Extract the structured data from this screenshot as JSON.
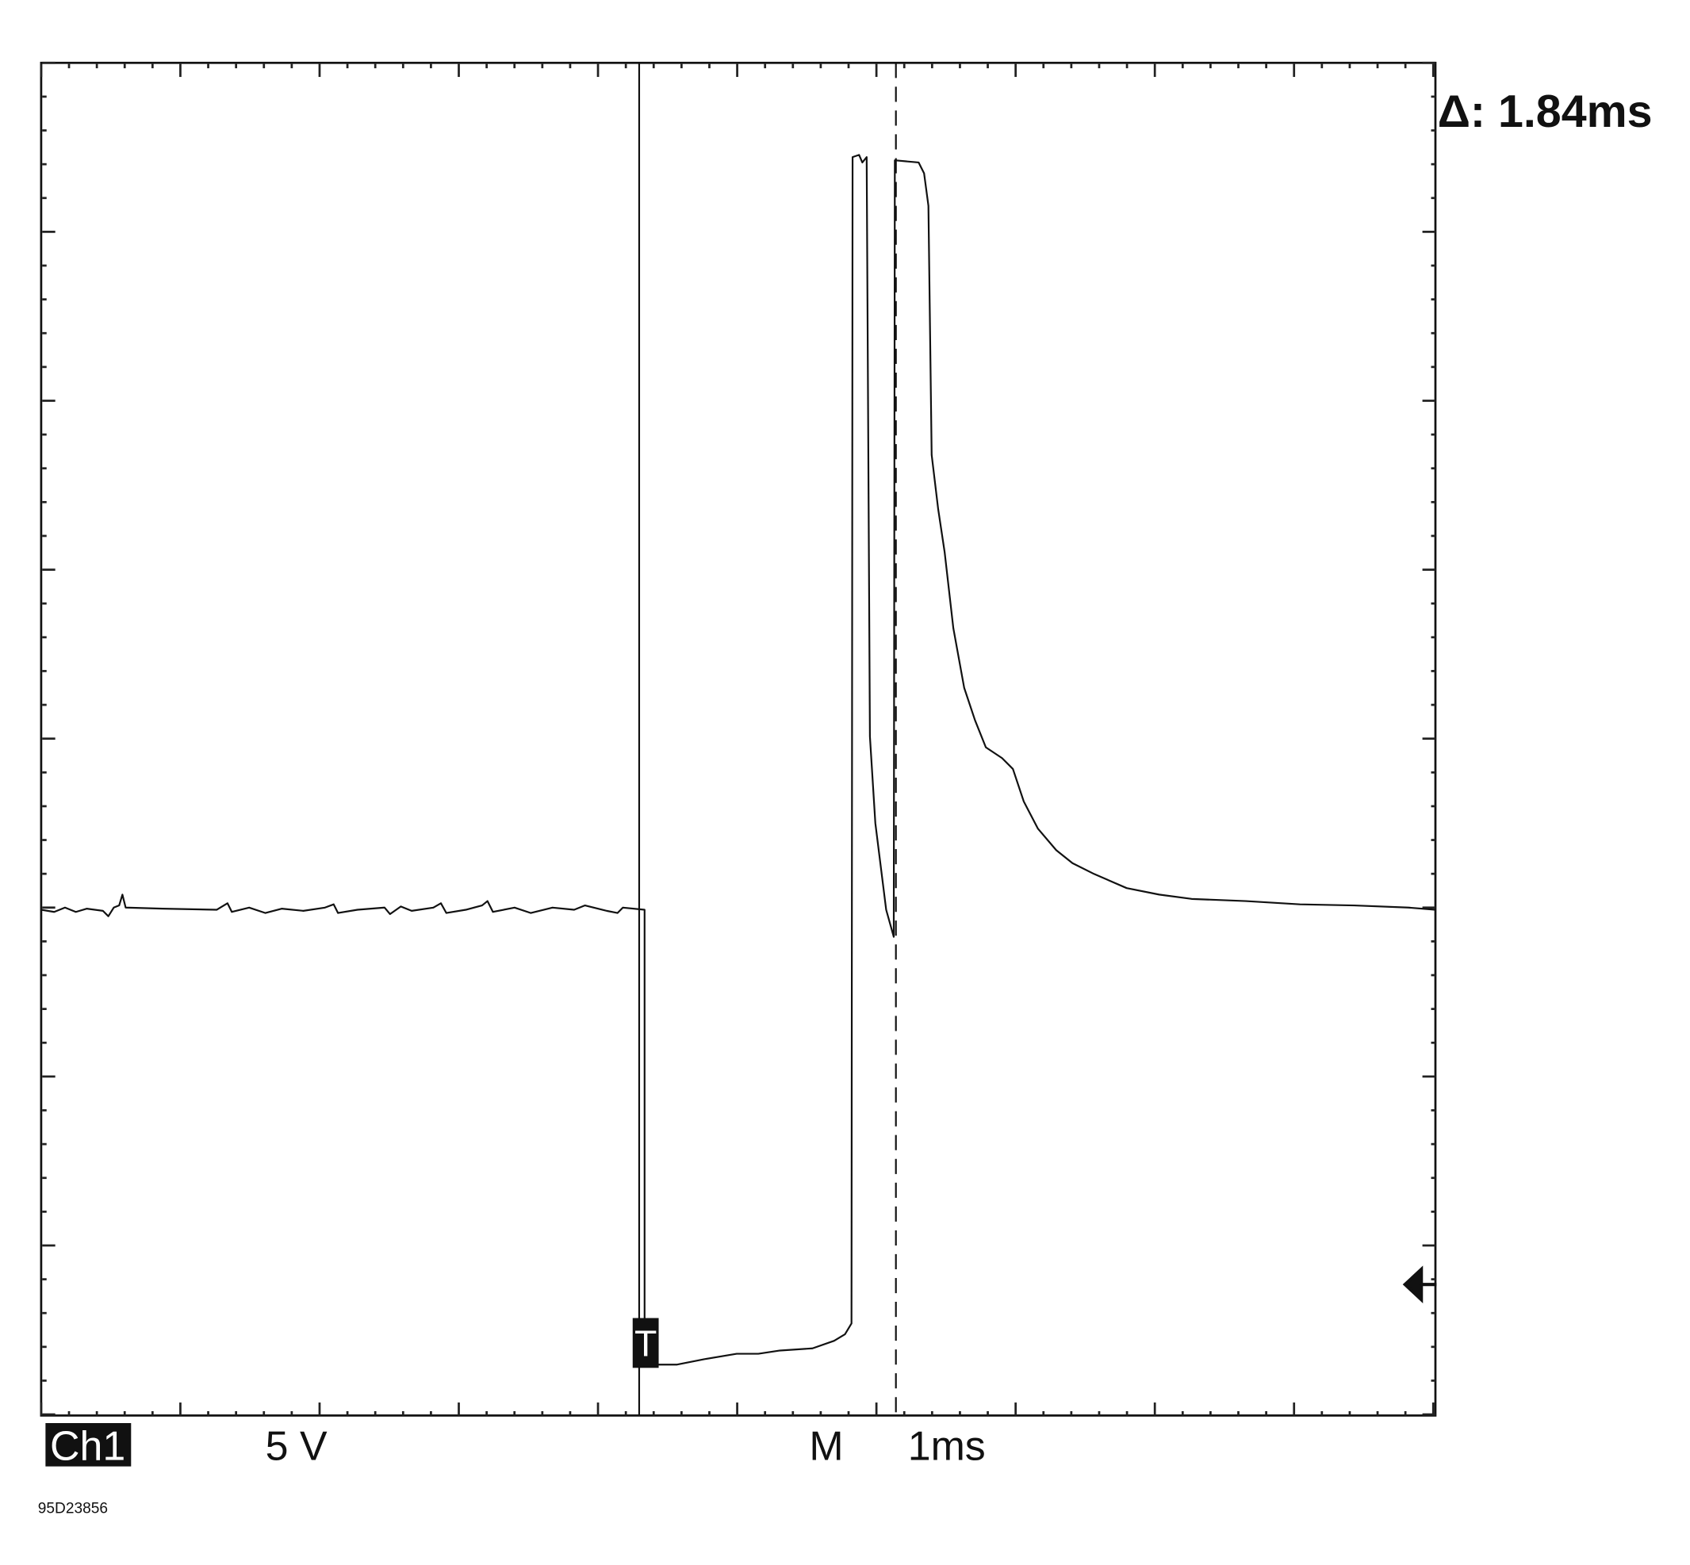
{
  "screen": {
    "delta_readout": "Δ: 1.84ms",
    "trigger_marker": "T"
  },
  "footer": {
    "channel": "Ch1",
    "volts_per_div": "5 V",
    "timebase_label": "M",
    "time_per_div": "1ms",
    "figure_id": "95D23856"
  }
}
